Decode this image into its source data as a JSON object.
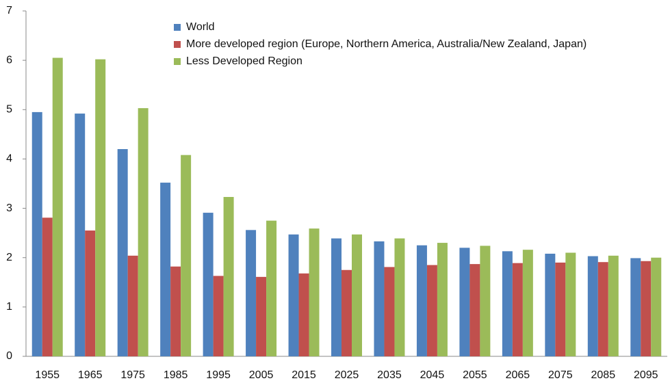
{
  "chart_data": {
    "type": "bar",
    "categories": [
      "1955",
      "1965",
      "1975",
      "1985",
      "1995",
      "2005",
      "2015",
      "2025",
      "2035",
      "2045",
      "2055",
      "2065",
      "2075",
      "2085",
      "2095"
    ],
    "series": [
      {
        "name": "World",
        "color": "#4f81bd",
        "values": [
          4.95,
          4.92,
          4.2,
          3.52,
          2.91,
          2.56,
          2.47,
          2.39,
          2.33,
          2.25,
          2.2,
          2.13,
          2.08,
          2.03,
          1.99
        ]
      },
      {
        "name": "More developed region (Europe, Northern America, Australia/New Zealand, Japan)",
        "color": "#c0504d",
        "values": [
          2.81,
          2.55,
          2.04,
          1.82,
          1.63,
          1.61,
          1.68,
          1.75,
          1.81,
          1.85,
          1.87,
          1.89,
          1.9,
          1.91,
          1.93
        ]
      },
      {
        "name": "Less Developed Region",
        "color": "#9bbb59",
        "values": [
          6.05,
          6.02,
          5.03,
          4.08,
          3.23,
          2.75,
          2.59,
          2.47,
          2.39,
          2.3,
          2.24,
          2.16,
          2.1,
          2.04,
          2.0
        ]
      }
    ],
    "ylim": [
      0,
      7
    ],
    "yticks": [
      0,
      1,
      2,
      3,
      4,
      5,
      6,
      7
    ]
  }
}
